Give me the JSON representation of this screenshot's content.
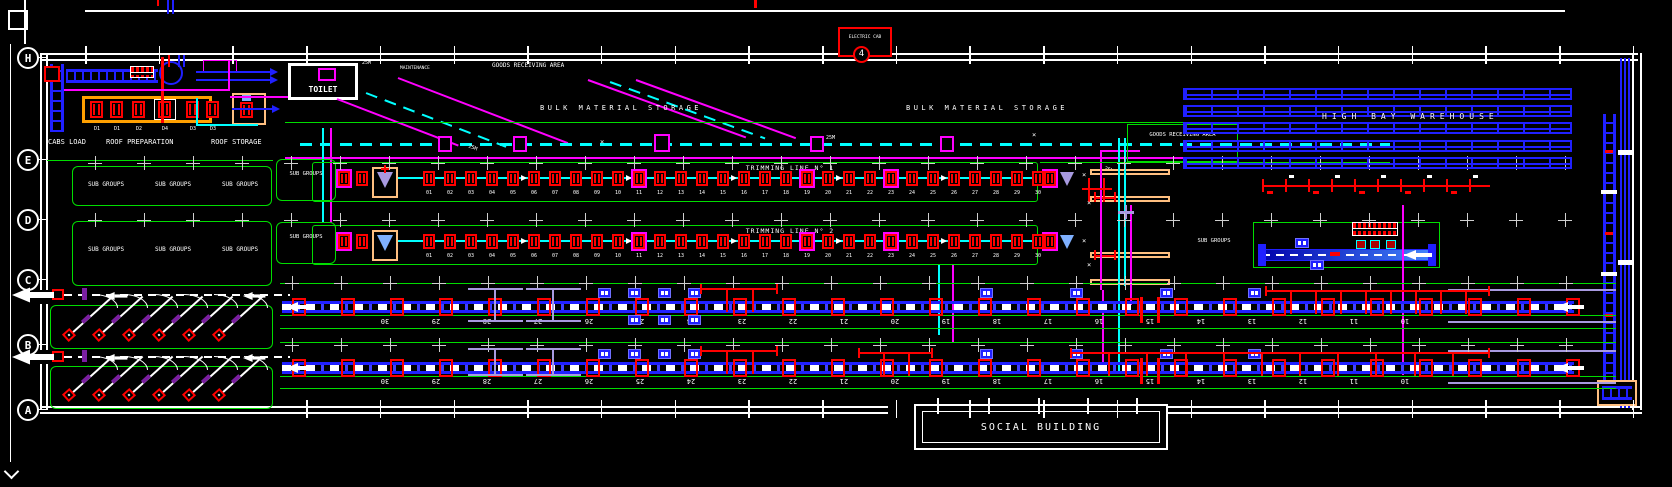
{
  "drawing_labels": {
    "cabs_load": "CABS LOAD",
    "roof_preparation": "ROOF PREPARATION",
    "roof_storage": "ROOF STORAGE",
    "sub_groups": "SUB GROUPS",
    "toilet": "TOILET",
    "maintenance": "MAINTENANCE",
    "goods_receiving_area": "GOODS RECEIVING AREA",
    "bulk_material_storage": "BULK MATERIAL STORAGE",
    "trimming_line_1": "TRIMMING LINE  N° 1",
    "trimming_line_2": "TRIMMING LINE  N° 2",
    "high_bay_warehouse": "HIGH BAY WAREHOUSE",
    "social_building": "SOCIAL BUILDING",
    "electric_cab": "ELECTRIC CAB",
    "electric_cab_number": "4"
  },
  "annotations": {
    "dim_25m": "25M"
  },
  "machine_labels": [
    "D1",
    "D1",
    "D2",
    "D4",
    "D3",
    "D3"
  ],
  "grid_letters": [
    "H",
    "E",
    "D",
    "C",
    "B",
    "A"
  ],
  "trimming_station_numbers": [
    "01",
    "02",
    "03",
    "04",
    "05",
    "06",
    "07",
    "08",
    "09",
    "10",
    "11",
    "12",
    "13",
    "14",
    "15",
    "16",
    "17",
    "18",
    "19",
    "20",
    "21",
    "22",
    "23",
    "24",
    "25",
    "26",
    "27",
    "28",
    "29",
    "30"
  ],
  "assembly_position_numbers": [
    "30",
    "29",
    "28",
    "27",
    "26",
    "25",
    "24",
    "23",
    "22",
    "21",
    "20",
    "19",
    "18",
    "17",
    "16",
    "15",
    "14",
    "13",
    "12",
    "11",
    "10"
  ],
  "colors": {
    "background": "#000000",
    "wall": "#ffffff",
    "zone_outline": "#00dd00",
    "route": "#ff00ff",
    "transport": "#00ffff",
    "station": "#ff0000",
    "conveyor": "#2020ff",
    "machine_frame": "#ffa000",
    "carrier_marker": "#a89ae0"
  }
}
